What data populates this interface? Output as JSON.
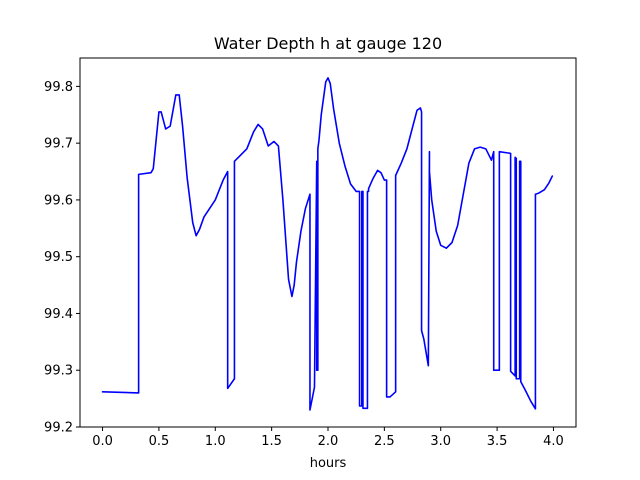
{
  "chart_data": {
    "type": "line",
    "title": "Water Depth h at gauge 120",
    "xlabel": "hours",
    "ylabel": "",
    "xlim": [
      -0.2,
      4.2
    ],
    "ylim": [
      99.2,
      99.85
    ],
    "xticks": [
      0.0,
      0.5,
      1.0,
      1.5,
      2.0,
      2.5,
      3.0,
      3.5,
      4.0
    ],
    "xtick_labels": [
      "0.0",
      "0.5",
      "1.0",
      "1.5",
      "2.0",
      "2.5",
      "3.0",
      "3.5",
      "4.0"
    ],
    "yticks": [
      99.2,
      99.3,
      99.4,
      99.5,
      99.6,
      99.7,
      99.8
    ],
    "ytick_labels": [
      "99.2",
      "99.3",
      "99.4",
      "99.5",
      "99.6",
      "99.7",
      "99.8"
    ],
    "grid": false,
    "series": [
      {
        "name": "",
        "color": "#0000ff",
        "x": [
          0.0,
          0.32,
          0.32,
          0.43,
          0.45,
          0.5,
          0.52,
          0.56,
          0.6,
          0.65,
          0.68,
          0.71,
          0.75,
          0.8,
          0.83,
          0.86,
          0.9,
          1.0,
          1.07,
          1.11,
          1.11,
          1.17,
          1.17,
          1.22,
          1.28,
          1.34,
          1.38,
          1.42,
          1.47,
          1.52,
          1.56,
          1.6,
          1.65,
          1.68,
          1.7,
          1.72,
          1.76,
          1.8,
          1.84,
          1.84,
          1.88,
          1.9,
          1.9,
          1.91,
          1.91,
          1.92,
          1.94,
          1.98,
          2.0,
          2.02,
          2.05,
          2.1,
          2.15,
          2.2,
          2.25,
          2.28,
          2.28,
          2.3,
          2.3,
          2.31,
          2.31,
          2.35,
          2.35,
          2.36,
          2.36,
          2.4,
          2.44,
          2.47,
          2.5,
          2.52,
          2.52,
          2.55,
          2.6,
          2.6,
          2.65,
          2.7,
          2.75,
          2.79,
          2.82,
          2.83,
          2.83,
          2.85,
          2.89,
          2.9,
          2.9,
          2.92,
          2.96,
          3.0,
          3.05,
          3.1,
          3.15,
          3.2,
          3.25,
          3.3,
          3.35,
          3.4,
          3.45,
          3.47,
          3.47,
          3.52,
          3.52,
          3.62,
          3.62,
          3.66,
          3.66,
          3.67,
          3.67,
          3.7,
          3.7,
          3.71,
          3.71,
          3.75,
          3.8,
          3.84,
          3.84,
          3.87,
          3.92,
          3.96,
          3.99
        ],
        "values": [
          99.262,
          99.26,
          99.645,
          99.648,
          99.655,
          99.755,
          99.755,
          99.725,
          99.73,
          99.785,
          99.785,
          99.73,
          99.64,
          99.56,
          99.537,
          99.548,
          99.57,
          99.6,
          99.635,
          99.65,
          99.268,
          99.285,
          99.668,
          99.678,
          99.69,
          99.72,
          99.733,
          99.725,
          99.695,
          99.703,
          99.695,
          99.6,
          99.46,
          99.43,
          99.45,
          99.49,
          99.545,
          99.585,
          99.61,
          99.23,
          99.27,
          99.668,
          99.3,
          99.3,
          99.69,
          99.705,
          99.75,
          99.808,
          99.815,
          99.805,
          99.76,
          99.7,
          99.66,
          99.628,
          99.615,
          99.615,
          99.237,
          99.237,
          99.615,
          99.615,
          99.233,
          99.233,
          99.615,
          99.615,
          99.62,
          99.638,
          99.652,
          99.648,
          99.635,
          99.635,
          99.253,
          99.253,
          99.262,
          99.643,
          99.665,
          99.69,
          99.728,
          99.758,
          99.762,
          99.755,
          99.37,
          99.355,
          99.308,
          99.685,
          99.65,
          99.6,
          99.545,
          99.52,
          99.515,
          99.525,
          99.555,
          99.61,
          99.665,
          99.69,
          99.693,
          99.69,
          99.67,
          99.685,
          99.3,
          99.3,
          99.685,
          99.682,
          99.298,
          99.29,
          99.675,
          99.673,
          99.285,
          99.285,
          99.668,
          99.668,
          99.28,
          99.265,
          99.245,
          99.232,
          99.61,
          99.612,
          99.618,
          99.63,
          99.642
        ]
      }
    ]
  }
}
